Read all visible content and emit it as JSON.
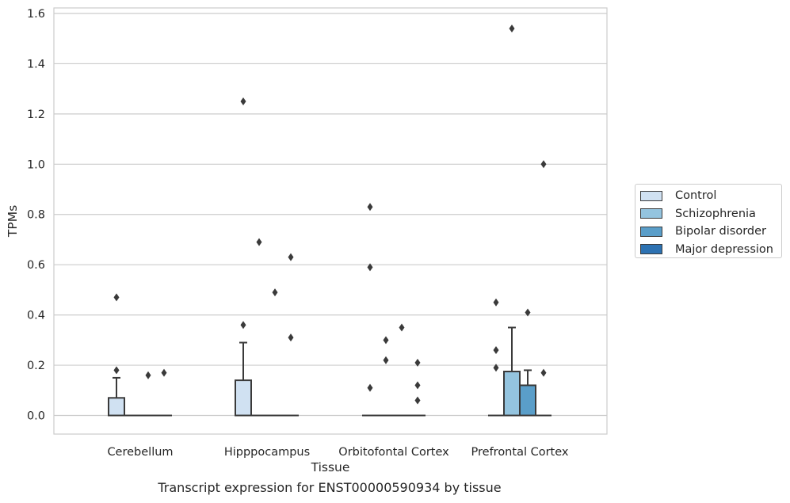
{
  "chart_data": {
    "type": "box",
    "xlabel": "Tissue",
    "ylabel": "TPMs",
    "caption": "Transcript expression for ENST00000590934 by tissue",
    "ylim": [
      -0.08,
      1.62
    ],
    "yticks": [
      0.0,
      0.2,
      0.4,
      0.6,
      0.8,
      1.0,
      1.2,
      1.4,
      1.6
    ],
    "ytick_labels": [
      "0.0",
      "0.2",
      "0.4",
      "0.6",
      "0.8",
      "1.0",
      "1.2",
      "1.4",
      "1.6"
    ],
    "grid": "horizontal",
    "legend_position": "right",
    "categories": [
      "Cerebellum",
      "Hipppocampus",
      "Orbitofontal Cortex",
      "Prefrontal Cortex"
    ],
    "series": [
      {
        "name": "Control",
        "color": "#d0e1f2",
        "boxes": [
          {
            "q1": 0.0,
            "median": 0.0,
            "q3": 0.07,
            "whisker_low": 0.0,
            "whisker_high": 0.15,
            "outliers": [
              0.47,
              0.18
            ]
          },
          {
            "q1": 0.0,
            "median": 0.0,
            "q3": 0.14,
            "whisker_low": 0.0,
            "whisker_high": 0.29,
            "outliers": [
              1.25,
              0.36
            ]
          },
          {
            "q1": 0.0,
            "median": 0.0,
            "q3": 0.0,
            "whisker_low": 0.0,
            "whisker_high": 0.0,
            "outliers": [
              0.83,
              0.59,
              0.11
            ]
          },
          {
            "q1": 0.0,
            "median": 0.0,
            "q3": 0.0,
            "whisker_low": 0.0,
            "whisker_high": 0.0,
            "outliers": [
              0.45,
              0.26,
              0.19
            ]
          }
        ]
      },
      {
        "name": "Schizophrenia",
        "color": "#94c4df",
        "boxes": [
          {
            "q1": 0.0,
            "median": 0.0,
            "q3": 0.0,
            "whisker_low": 0.0,
            "whisker_high": 0.0,
            "outliers": []
          },
          {
            "q1": 0.0,
            "median": 0.0,
            "q3": 0.0,
            "whisker_low": 0.0,
            "whisker_high": 0.0,
            "outliers": [
              0.69
            ]
          },
          {
            "q1": 0.0,
            "median": 0.0,
            "q3": 0.0,
            "whisker_low": 0.0,
            "whisker_high": 0.0,
            "outliers": [
              0.3,
              0.22
            ]
          },
          {
            "q1": 0.0,
            "median": 0.0,
            "q3": 0.175,
            "whisker_low": 0.0,
            "whisker_high": 0.35,
            "outliers": [
              1.54
            ]
          }
        ]
      },
      {
        "name": "Bipolar disorder",
        "color": "#5a9ec9",
        "boxes": [
          {
            "q1": 0.0,
            "median": 0.0,
            "q3": 0.0,
            "whisker_low": 0.0,
            "whisker_high": 0.0,
            "outliers": [
              0.16
            ]
          },
          {
            "q1": 0.0,
            "median": 0.0,
            "q3": 0.0,
            "whisker_low": 0.0,
            "whisker_high": 0.0,
            "outliers": [
              0.49
            ]
          },
          {
            "q1": 0.0,
            "median": 0.0,
            "q3": 0.0,
            "whisker_low": 0.0,
            "whisker_high": 0.0,
            "outliers": [
              0.35
            ]
          },
          {
            "q1": 0.0,
            "median": 0.0,
            "q3": 0.12,
            "whisker_low": 0.0,
            "whisker_high": 0.18,
            "outliers": [
              0.41
            ]
          }
        ]
      },
      {
        "name": "Major depression",
        "color": "#2d72b2",
        "boxes": [
          {
            "q1": 0.0,
            "median": 0.0,
            "q3": 0.0,
            "whisker_low": 0.0,
            "whisker_high": 0.0,
            "outliers": [
              0.17
            ]
          },
          {
            "q1": 0.0,
            "median": 0.0,
            "q3": 0.0,
            "whisker_low": 0.0,
            "whisker_high": 0.0,
            "outliers": [
              0.63,
              0.31
            ]
          },
          {
            "q1": 0.0,
            "median": 0.0,
            "q3": 0.0,
            "whisker_low": 0.0,
            "whisker_high": 0.0,
            "outliers": [
              0.21,
              0.12,
              0.06
            ]
          },
          {
            "q1": 0.0,
            "median": 0.0,
            "q3": 0.0,
            "whisker_low": 0.0,
            "whisker_high": 0.0,
            "outliers": [
              1.0,
              0.17
            ]
          }
        ]
      }
    ]
  }
}
